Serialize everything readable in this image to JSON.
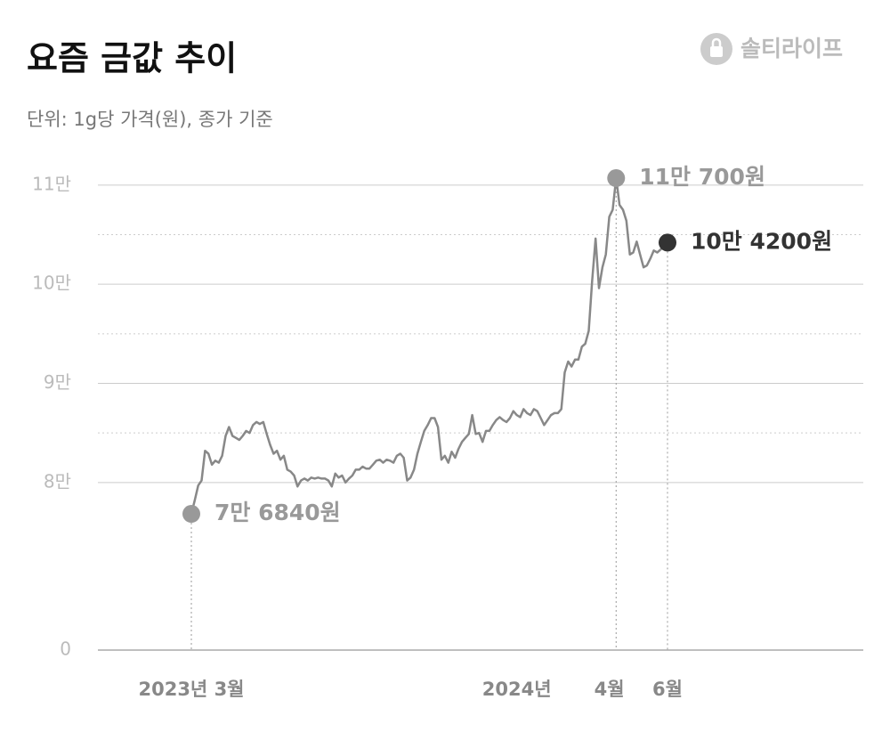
{
  "chart_data": {
    "type": "line",
    "title": "요즘 금값 추이",
    "subtitle": "단위: 1g당 가격(원), 종가 기준",
    "brand": "솔티라이프",
    "categories": [
      "2023년 3월",
      null,
      null,
      null,
      null,
      null,
      null,
      null,
      null,
      null,
      null,
      null,
      null,
      null,
      null,
      null,
      null,
      null,
      null,
      null,
      null,
      null,
      null,
      null,
      null,
      null,
      null,
      null,
      null,
      null,
      null,
      null,
      null,
      null,
      null,
      null,
      null,
      null,
      null,
      null,
      null,
      null,
      null,
      null,
      null,
      null,
      null,
      null,
      null,
      null,
      null,
      null,
      null,
      null,
      null,
      null,
      null,
      null,
      null,
      null,
      null,
      null,
      null,
      null,
      null,
      null,
      null,
      null,
      null,
      null,
      null,
      null,
      null,
      null,
      null,
      null,
      null,
      null,
      null,
      null,
      null,
      null,
      null,
      null,
      null,
      null,
      null,
      null,
      null,
      null,
      null,
      null,
      null,
      null,
      null,
      "2024년",
      null,
      null,
      null,
      null,
      null,
      null,
      null,
      null,
      null,
      null,
      null,
      null,
      null,
      null,
      null,
      null,
      null,
      null,
      null,
      null,
      null,
      null,
      null,
      null,
      null,
      null,
      "4월",
      null,
      null,
      null,
      null,
      null,
      null,
      null,
      null,
      null,
      null,
      null,
      null,
      null,
      null,
      null,
      null,
      "6월"
    ],
    "values": [
      76840,
      78200,
      79700,
      80200,
      83200,
      82900,
      81800,
      82200,
      82000,
      82700,
      84700,
      85600,
      84700,
      84500,
      84300,
      84700,
      85200,
      85000,
      85800,
      86100,
      85900,
      86100,
      84900,
      83800,
      82900,
      83200,
      82300,
      82700,
      81300,
      81100,
      80700,
      79600,
      80200,
      80400,
      80200,
      80500,
      80400,
      80500,
      80400,
      80400,
      80200,
      79600,
      80900,
      80500,
      80700,
      80000,
      80400,
      80700,
      81300,
      81300,
      81600,
      81400,
      81400,
      81800,
      82200,
      82300,
      82000,
      82300,
      82200,
      82000,
      82700,
      82900,
      82500,
      80200,
      80500,
      81300,
      82900,
      84100,
      85200,
      85800,
      86500,
      86500,
      85600,
      82300,
      82700,
      82000,
      83100,
      82500,
      83400,
      84100,
      84500,
      84900,
      86800,
      84900,
      85000,
      84100,
      85200,
      85200,
      85800,
      86300,
      86600,
      86300,
      86100,
      86500,
      87200,
      86800,
      86600,
      87400,
      87000,
      86800,
      87400,
      87200,
      86500,
      85800,
      86300,
      86800,
      87000,
      87000,
      87400,
      91100,
      92200,
      91700,
      92400,
      92400,
      93700,
      94000,
      95300,
      100300,
      104600,
      99600,
      101700,
      103000,
      106800,
      107500,
      110700,
      108000,
      107500,
      106400,
      103000,
      103200,
      104300,
      103000,
      101700,
      101900,
      102600,
      103400,
      103200,
      103500,
      104100,
      104200
    ],
    "value_labels": [
      "7만 6840원",
      null,
      null,
      null,
      null,
      null,
      null,
      null,
      null,
      null,
      null,
      null,
      null,
      null,
      null,
      null,
      null,
      null,
      null,
      null,
      null,
      null,
      null,
      null,
      null,
      null,
      null,
      null,
      null,
      null,
      null,
      null,
      null,
      null,
      null,
      null,
      null,
      null,
      null,
      null,
      null,
      null,
      null,
      null,
      null,
      null,
      null,
      null,
      null,
      null,
      null,
      null,
      null,
      null,
      null,
      null,
      null,
      null,
      null,
      null,
      null,
      null,
      null,
      null,
      null,
      null,
      null,
      null,
      null,
      null,
      null,
      null,
      null,
      null,
      null,
      null,
      null,
      null,
      null,
      null,
      null,
      null,
      null,
      null,
      null,
      null,
      null,
      null,
      null,
      null,
      null,
      null,
      null,
      null,
      null,
      null,
      null,
      null,
      null,
      null,
      null,
      null,
      null,
      null,
      null,
      null,
      null,
      null,
      null,
      null,
      null,
      null,
      null,
      null,
      null,
      null,
      null,
      null,
      null,
      null,
      null,
      null,
      null,
      null,
      "11만 700원",
      null,
      null,
      null,
      null,
      null,
      null,
      null,
      null,
      null,
      null,
      null,
      null,
      null,
      null,
      "10만 4200원"
    ],
    "color": "#888888",
    "label_color": "#999999",
    "last_label_color": "#333333",
    "ylim": [
      63100,
      111600
    ],
    "yticks": [
      {
        "value": 0,
        "label": "0"
      },
      {
        "value": 80000,
        "label": "8만"
      },
      {
        "value": 90000,
        "label": "9만"
      },
      {
        "value": 100000,
        "label": "10만"
      },
      {
        "value": 110000,
        "label": "11만"
      }
    ],
    "minor_yticks": [
      85000,
      95000,
      105000
    ],
    "axis_break": true,
    "grid": true
  }
}
